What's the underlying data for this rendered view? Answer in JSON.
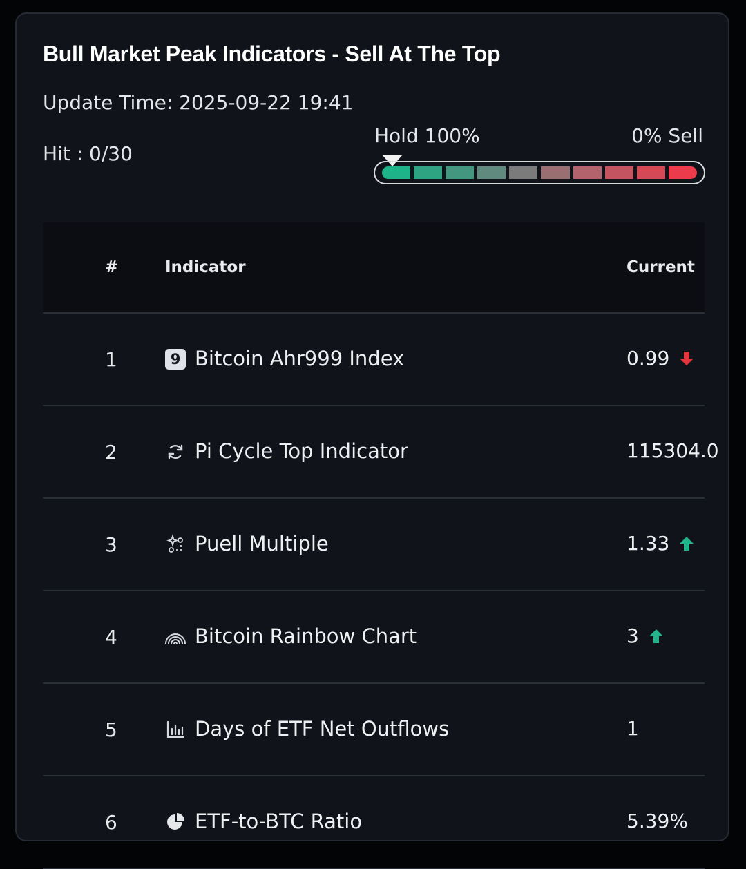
{
  "header": {
    "title": "Bull Market Peak Indicators - Sell At The Top",
    "update_time": "Update Time: 2025-09-22 19:41",
    "hit": "Hit : 0/30"
  },
  "gauge": {
    "hold_label": "Hold 100%",
    "sell_label": "0% Sell",
    "level_fraction": 0.0,
    "segment_colors": [
      "#1fb38a",
      "#2fa483",
      "#43977f",
      "#5f8a7d",
      "#7b7b7b",
      "#9a6f72",
      "#b3636b",
      "#c4545f",
      "#d54856",
      "#ec3b4a"
    ]
  },
  "table": {
    "headers": {
      "num": "#",
      "indicator": "Indicator",
      "current": "Current"
    },
    "rows": [
      {
        "num": "1",
        "name": "Bitcoin Ahr999 Index",
        "current": "0.99",
        "icon": "nine-badge-icon",
        "trend": "down"
      },
      {
        "num": "2",
        "name": "Pi Cycle Top Indicator",
        "current": "115304.0",
        "icon": "cycle-arrows-icon",
        "trend": "none"
      },
      {
        "num": "3",
        "name": "Puell Multiple",
        "current": "1.33",
        "icon": "sparkle-nodes-icon",
        "trend": "up"
      },
      {
        "num": "4",
        "name": "Bitcoin Rainbow Chart",
        "current": "3",
        "icon": "rainbow-icon",
        "trend": "up"
      },
      {
        "num": "5",
        "name": "Days of ETF Net Outflows",
        "current": "1",
        "icon": "bar-chart-icon",
        "trend": "none"
      },
      {
        "num": "6",
        "name": "ETF-to-BTC Ratio",
        "current": "5.39%",
        "icon": "pie-chart-icon",
        "trend": "none"
      }
    ]
  },
  "colors": {
    "up": "#22b58c",
    "down": "#e5353f",
    "badge9_text": "9"
  }
}
